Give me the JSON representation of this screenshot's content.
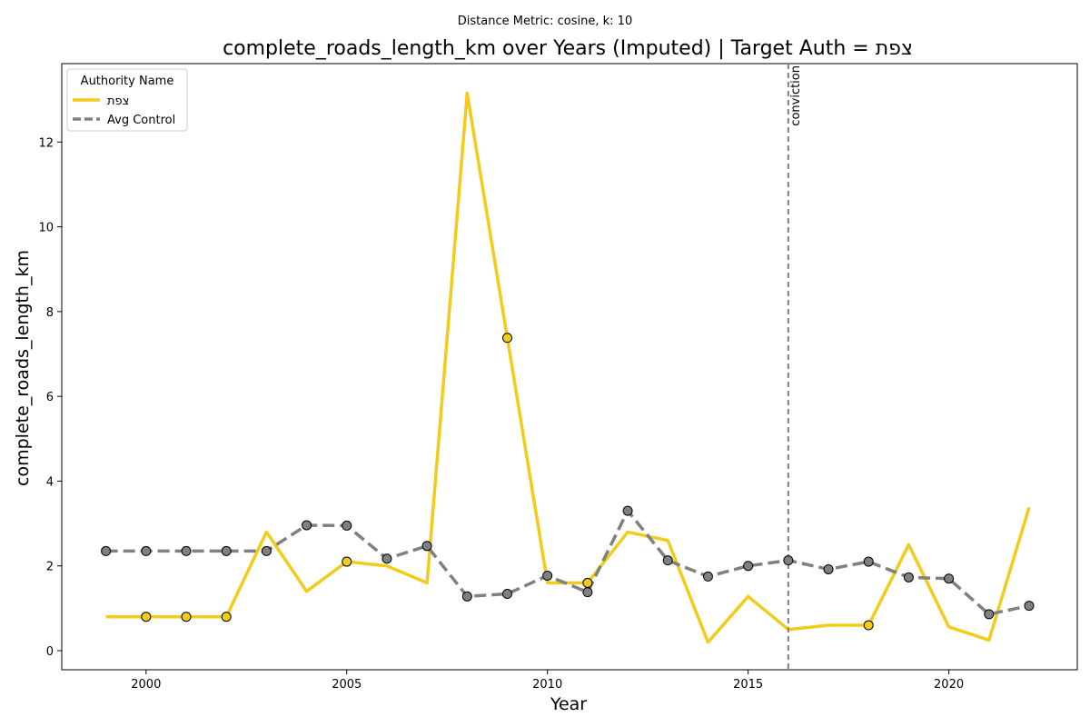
{
  "chart_data": {
    "type": "line",
    "suptitle": "Distance Metric: cosine, k: 10",
    "title": "complete_roads_length_km over Years (Imputed) | Target Auth = צפת",
    "xlabel": "Year",
    "ylabel": "complete_roads_length_km",
    "xlim": [
      1997.9,
      2023.2
    ],
    "ylim": [
      -0.45,
      13.85
    ],
    "xticks": [
      2000,
      2005,
      2010,
      2015,
      2020
    ],
    "yticks": [
      0,
      2,
      4,
      6,
      8,
      10,
      12
    ],
    "grid": false,
    "legend": {
      "title": "Authority Name",
      "position": "top-left"
    },
    "x": [
      1999,
      2000,
      2001,
      2002,
      2003,
      2004,
      2005,
      2006,
      2007,
      2008,
      2009,
      2010,
      2011,
      2012,
      2013,
      2014,
      2015,
      2016,
      2017,
      2018,
      2019,
      2020,
      2021,
      2022
    ],
    "series": [
      {
        "name": "צפת",
        "color": "#f2cc1a",
        "style": "solid",
        "values": [
          0.8,
          0.8,
          0.8,
          0.8,
          2.8,
          1.4,
          2.1,
          2.0,
          1.6,
          13.15,
          7.38,
          1.6,
          1.6,
          2.8,
          2.6,
          0.2,
          1.28,
          0.5,
          0.6,
          0.6,
          2.5,
          0.56,
          0.25,
          3.38
        ],
        "markers_at": [
          2000,
          2001,
          2002,
          2005,
          2009,
          2011,
          2018
        ]
      },
      {
        "name": "Avg Control",
        "color": "#808080",
        "style": "dashed",
        "values": [
          2.35,
          2.35,
          2.35,
          2.35,
          2.35,
          2.96,
          2.95,
          2.17,
          2.47,
          1.28,
          1.34,
          1.77,
          1.38,
          3.3,
          2.13,
          1.75,
          2.0,
          2.13,
          1.92,
          2.1,
          1.73,
          1.7,
          0.86,
          1.06
        ],
        "markers_at": [
          1999,
          2000,
          2001,
          2002,
          2003,
          2004,
          2005,
          2006,
          2007,
          2008,
          2009,
          2010,
          2011,
          2012,
          2013,
          2014,
          2015,
          2016,
          2017,
          2018,
          2019,
          2020,
          2021,
          2022
        ]
      }
    ],
    "annotations": [
      {
        "type": "vline",
        "x": 2016,
        "label": "conviction",
        "color": "#808080"
      }
    ]
  }
}
